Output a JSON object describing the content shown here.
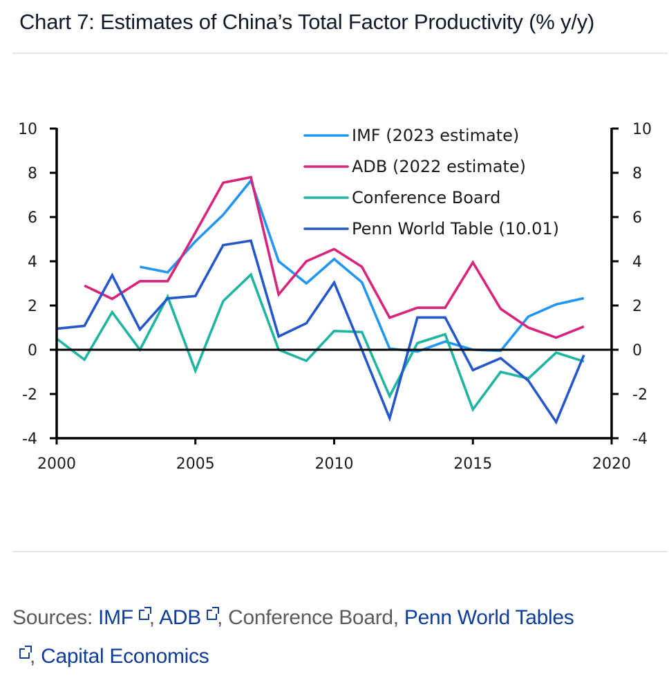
{
  "page": {
    "title": "Chart 7: Estimates of China’s Total Factor Productivity (% y/y)"
  },
  "sources": {
    "prefix": "Sources: ",
    "items": [
      {
        "label": "IMF",
        "link": true,
        "external": true
      },
      {
        "label": "ADB",
        "link": true,
        "external": true
      },
      {
        "label": "Conference Board",
        "link": false,
        "external": false
      },
      {
        "label": "Penn World Tables",
        "link": true,
        "external": true
      },
      {
        "label": "Capital Economics",
        "link": true,
        "external": false
      }
    ],
    "separator": ", "
  },
  "chart_data": {
    "type": "line",
    "title": "Chart 7: Estimates of China’s Total Factor Productivity (% y/y)",
    "xlabel": "",
    "ylabel": "",
    "xlim": [
      2000,
      2020
    ],
    "ylim": [
      -4,
      10
    ],
    "x_ticks": [
      2000,
      2005,
      2010,
      2015,
      2020
    ],
    "y_ticks": [
      -4,
      -2,
      0,
      2,
      4,
      6,
      8,
      10
    ],
    "y_ticks_right": [
      -4,
      -2,
      0,
      2,
      4,
      6,
      8,
      10
    ],
    "grid": false,
    "zero_line": true,
    "legend_position": "top-right",
    "x": [
      2000,
      2001,
      2002,
      2003,
      2004,
      2005,
      2006,
      2007,
      2008,
      2009,
      2010,
      2011,
      2012,
      2013,
      2014,
      2015,
      2016,
      2017,
      2018,
      2019
    ],
    "series": [
      {
        "name": "IMF (2023 estimate)",
        "color": "#2196f3",
        "values": [
          null,
          null,
          null,
          3.75,
          3.5,
          4.9,
          6.1,
          7.65,
          4.0,
          3.0,
          4.1,
          3.05,
          0.05,
          -0.08,
          0.37,
          0.0,
          -0.05,
          1.5,
          2.05,
          2.33
        ]
      },
      {
        "name": "ADB (2022 estimate)",
        "color": "#d6257a",
        "values": [
          null,
          2.9,
          2.3,
          3.1,
          3.1,
          5.3,
          7.55,
          7.8,
          2.5,
          4.0,
          4.55,
          3.75,
          1.45,
          1.9,
          1.9,
          3.95,
          1.85,
          1.0,
          0.55,
          1.05
        ]
      },
      {
        "name": "Conference Board",
        "color": "#1fb5a0",
        "values": [
          0.5,
          -0.45,
          1.7,
          0.0,
          2.4,
          -0.95,
          2.2,
          3.4,
          0.0,
          -0.5,
          0.85,
          0.8,
          -2.1,
          0.3,
          0.7,
          -2.7,
          -1.0,
          -1.3,
          -0.13,
          -0.53
        ]
      },
      {
        "name": "Penn World Table (10.01)",
        "color": "#2457c9",
        "values": [
          0.95,
          1.08,
          3.37,
          0.92,
          2.32,
          2.43,
          4.73,
          4.93,
          0.6,
          1.2,
          3.04,
          0.0,
          -3.1,
          1.46,
          1.46,
          -0.92,
          -0.38,
          -1.4,
          -3.27,
          -0.24
        ]
      }
    ]
  }
}
